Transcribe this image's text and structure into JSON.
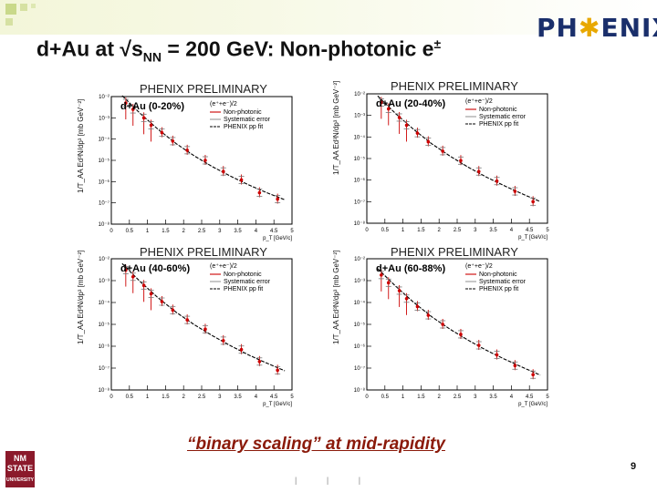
{
  "slide": {
    "title_main": "d+Au at √s",
    "title_sub": "NN",
    "title_rest": " = 200 GeV: Non-photonic e",
    "title_sup": "±",
    "logo_left": "PH",
    "logo_star": "✱",
    "logo_right": "ENIX",
    "footer": "“binary scaling” at mid-rapidity",
    "page_number": "9",
    "university_logo": "NM STATE UNIVERSITY",
    "bottom_marks": "|             |             |",
    "colors": {
      "accent_band": "#f3f6d9",
      "logo": "#1a2f6b",
      "footer": "#8b1a0a",
      "data_red": "#cc0000",
      "fit": "#000000"
    }
  },
  "panel_common": {
    "preliminary": "PHENIX PRELIMINARY",
    "ylabel": "1/T_AA Ed³N/dp³ [mb GeV⁻²]",
    "xlabel": "p_T [GeV/c]",
    "legend_header": "(e⁺+e⁻)/2",
    "legend_items": [
      "Non-photonic",
      "Systematic error",
      "PHENIX pp fit"
    ]
  },
  "chart_data": [
    {
      "type": "scatter",
      "label": "d+Au (0-20%)",
      "xlim": [
        0,
        5
      ],
      "ylim_log10": [
        -8,
        -2
      ],
      "xticks": [
        "0",
        "0.5",
        "1",
        "1.5",
        "2",
        "2.5",
        "3",
        "3.5",
        "4",
        "4.5",
        "5"
      ],
      "yticks": [
        "10⁻⁸",
        "10⁻⁷",
        "10⁻⁶",
        "10⁻⁵",
        "10⁻⁴",
        "10⁻³",
        "10⁻²"
      ],
      "points": [
        {
          "x": 0.4,
          "y": 0.005
        },
        {
          "x": 0.6,
          "y": 0.0025
        },
        {
          "x": 0.9,
          "y": 0.001
        },
        {
          "x": 1.1,
          "y": 0.00045
        },
        {
          "x": 1.4,
          "y": 0.0002
        },
        {
          "x": 1.7,
          "y": 8e-05
        },
        {
          "x": 2.1,
          "y": 3e-05
        },
        {
          "x": 2.6,
          "y": 1e-05
        },
        {
          "x": 3.1,
          "y": 3e-06
        },
        {
          "x": 3.6,
          "y": 1.2e-06
        },
        {
          "x": 4.1,
          "y": 3e-07
        },
        {
          "x": 4.6,
          "y": 1.5e-07
        }
      ],
      "fit": {
        "x": [
          0.3,
          0.8,
          1.3,
          1.8,
          2.3,
          2.8,
          3.3,
          3.8,
          4.3,
          4.8
        ],
        "y": [
          0.011,
          0.0016,
          0.00028,
          6e-05,
          1.6e-05,
          5e-06,
          1.8e-06,
          7e-07,
          3e-07,
          1.4e-07
        ]
      }
    },
    {
      "type": "scatter",
      "label": "d+Au (20-40%)",
      "xlim": [
        0,
        5
      ],
      "ylim_log10": [
        -8,
        -2
      ],
      "xticks": [
        "0",
        "0.5",
        "1",
        "1.5",
        "2",
        "2.5",
        "3",
        "3.5",
        "4",
        "4.5",
        "5"
      ],
      "yticks": [
        "10⁻⁸",
        "10⁻⁷",
        "10⁻⁶",
        "10⁻⁵",
        "10⁻⁴",
        "10⁻³",
        "10⁻²"
      ],
      "points": [
        {
          "x": 0.4,
          "y": 0.004
        },
        {
          "x": 0.6,
          "y": 0.002
        },
        {
          "x": 0.9,
          "y": 0.0008
        },
        {
          "x": 1.1,
          "y": 0.00035
        },
        {
          "x": 1.4,
          "y": 0.00015
        },
        {
          "x": 1.7,
          "y": 6e-05
        },
        {
          "x": 2.1,
          "y": 2.2e-05
        },
        {
          "x": 2.6,
          "y": 8e-06
        },
        {
          "x": 3.1,
          "y": 2.5e-06
        },
        {
          "x": 3.6,
          "y": 9e-07
        },
        {
          "x": 4.1,
          "y": 3e-07
        },
        {
          "x": 4.6,
          "y": 1e-07
        }
      ],
      "fit": {
        "x": [
          0.3,
          0.8,
          1.3,
          1.8,
          2.3,
          2.8,
          3.3,
          3.8,
          4.3,
          4.8
        ],
        "y": [
          0.008,
          0.0012,
          0.00022,
          4.8e-05,
          1.3e-05,
          4e-06,
          1.4e-06,
          5.5e-07,
          2.3e-07,
          1e-07
        ]
      }
    },
    {
      "type": "scatter",
      "label": "d+Au (40-60%)",
      "xlim": [
        0,
        5
      ],
      "ylim_log10": [
        -8,
        -2
      ],
      "xticks": [
        "0",
        "0.5",
        "1",
        "1.5",
        "2",
        "2.5",
        "3",
        "3.5",
        "4",
        "4.5",
        "5"
      ],
      "yticks": [
        "10⁻⁸",
        "10⁻⁷",
        "10⁻⁶",
        "10⁻⁵",
        "10⁻⁴",
        "10⁻³",
        "10⁻²"
      ],
      "points": [
        {
          "x": 0.4,
          "y": 0.003
        },
        {
          "x": 0.6,
          "y": 0.0015
        },
        {
          "x": 0.9,
          "y": 0.0006
        },
        {
          "x": 1.1,
          "y": 0.00025
        },
        {
          "x": 1.4,
          "y": 0.00011
        },
        {
          "x": 1.7,
          "y": 4.5e-05
        },
        {
          "x": 2.1,
          "y": 1.6e-05
        },
        {
          "x": 2.6,
          "y": 6e-06
        },
        {
          "x": 3.1,
          "y": 1.8e-06
        },
        {
          "x": 3.6,
          "y": 7e-07
        },
        {
          "x": 4.1,
          "y": 2e-07
        },
        {
          "x": 4.6,
          "y": 8e-08
        }
      ],
      "fit": {
        "x": [
          0.3,
          0.8,
          1.3,
          1.8,
          2.3,
          2.8,
          3.3,
          3.8,
          4.3,
          4.8
        ],
        "y": [
          0.006,
          0.0009,
          0.00016,
          3.5e-05,
          9.5e-06,
          3e-06,
          1.05e-06,
          4e-07,
          1.7e-07,
          7.5e-08
        ]
      }
    },
    {
      "type": "scatter",
      "label": "d+Au (60-88%)",
      "xlim": [
        0,
        5
      ],
      "ylim_log10": [
        -8,
        -2
      ],
      "xticks": [
        "0",
        "0.5",
        "1",
        "1.5",
        "2",
        "2.5",
        "3",
        "3.5",
        "4",
        "4.5",
        "5"
      ],
      "yticks": [
        "10⁻⁸",
        "10⁻⁷",
        "10⁻⁶",
        "10⁻⁵",
        "10⁻⁴",
        "10⁻³",
        "10⁻²"
      ],
      "points": [
        {
          "x": 0.4,
          "y": 0.0018
        },
        {
          "x": 0.6,
          "y": 0.0008
        },
        {
          "x": 0.9,
          "y": 0.00035
        },
        {
          "x": 1.1,
          "y": 0.00015
        },
        {
          "x": 1.4,
          "y": 6.5e-05
        },
        {
          "x": 1.7,
          "y": 2.6e-05
        },
        {
          "x": 2.1,
          "y": 1e-05
        },
        {
          "x": 2.6,
          "y": 3.5e-06
        },
        {
          "x": 3.1,
          "y": 1.1e-06
        },
        {
          "x": 3.6,
          "y": 4e-07
        },
        {
          "x": 4.1,
          "y": 1.3e-07
        },
        {
          "x": 4.6,
          "y": 5e-08
        }
      ],
      "fit": {
        "x": [
          0.3,
          0.8,
          1.3,
          1.8,
          2.3,
          2.8,
          3.3,
          3.8,
          4.3,
          4.8
        ],
        "y": [
          0.0035,
          0.00055,
          0.0001,
          2.2e-05,
          6e-06,
          1.9e-06,
          6.6e-07,
          2.6e-07,
          1.1e-07,
          4.8e-08
        ]
      }
    }
  ]
}
